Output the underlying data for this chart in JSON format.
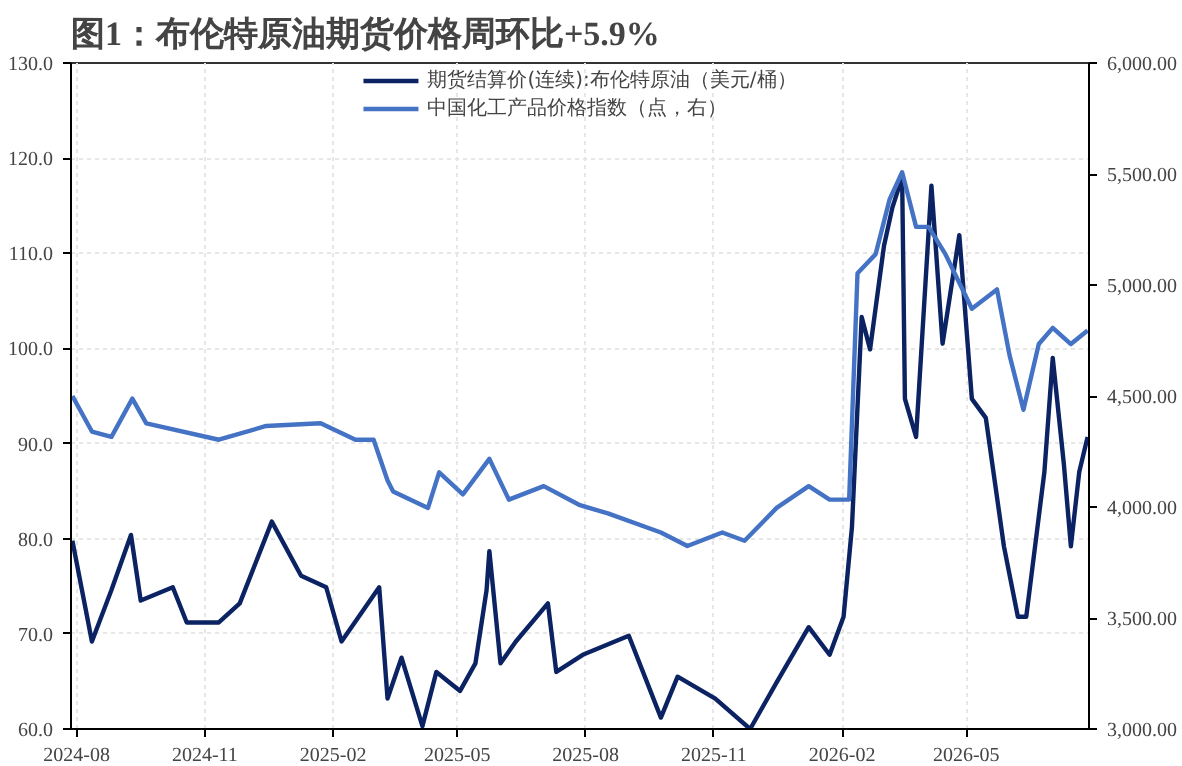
{
  "chart_data": {
    "type": "line",
    "title": "图1：布伦特原油期货价格周环比+5.9%",
    "xlim": [
      "2024-07-28",
      "2026-07-28"
    ],
    "xticks": [
      "2024-08",
      "2024-11",
      "2025-02",
      "2025-05",
      "2025-08",
      "2025-11",
      "2026-02",
      "2026-05"
    ],
    "ylim": [
      60,
      130
    ],
    "yticks": [
      {
        "value": 60,
        "label": "60.0"
      },
      {
        "value": 70,
        "label": "70.0"
      },
      {
        "value": 80,
        "label": "80.0"
      },
      {
        "value": 90,
        "label": "90.0"
      },
      {
        "value": 100,
        "label": "100.0"
      },
      {
        "value": 110,
        "label": "110.0"
      },
      {
        "value": 120,
        "label": "120.0"
      },
      {
        "value": 130,
        "label": "130.0"
      }
    ],
    "y2lim": [
      3000,
      6000
    ],
    "y2ticks": [
      {
        "value": 3000,
        "label": "3,000.00"
      },
      {
        "value": 3500,
        "label": "3,500.00"
      },
      {
        "value": 4000,
        "label": "4,000.00"
      },
      {
        "value": 4500,
        "label": "4,500.00"
      },
      {
        "value": 5000,
        "label": "5,000.00"
      },
      {
        "value": 5500,
        "label": "5,500.00"
      },
      {
        "value": 6000,
        "label": "6,000.00"
      }
    ],
    "grid": true,
    "legend": "top",
    "line_style": "solid",
    "series": [
      {
        "name": "期货结算价(连续):布伦特原油（美元/桶）",
        "color": "#0b2263",
        "x": [
          "2024-07-29",
          "2024-08-12",
          "2024-08-26",
          "2024-09-09",
          "2024-09-16",
          "2024-10-09",
          "2024-10-19",
          "2024-11-11",
          "2024-11-26",
          "2024-12-19",
          "2025-01-09",
          "2025-01-27",
          "2025-02-07",
          "2025-03-06",
          "2025-03-12",
          "2025-03-22",
          "2025-04-06",
          "2025-04-16",
          "2025-05-03",
          "2025-05-14",
          "2025-05-22",
          "2025-05-24",
          "2025-06-01",
          "2025-06-12",
          "2025-07-05",
          "2025-07-11",
          "2025-07-30",
          "2025-09-01",
          "2025-09-24",
          "2025-10-06",
          "2025-11-02",
          "2025-11-27",
          "2025-12-16",
          "2026-01-08",
          "2026-01-23",
          "2026-02-02",
          "2026-02-08",
          "2026-02-15",
          "2026-02-21",
          "2026-03-03",
          "2026-03-09",
          "2026-03-16",
          "2026-03-18",
          "2026-03-26",
          "2026-04-06",
          "2026-04-14",
          "2026-04-26",
          "2026-05-05",
          "2026-05-15",
          "2026-05-28",
          "2026-06-07",
          "2026-06-13",
          "2026-06-26",
          "2026-07-02",
          "2026-07-10",
          "2026-07-15",
          "2026-07-21",
          "2026-07-27"
        ],
        "values": [
          79.8,
          69.2,
          74.6,
          80.4,
          73.5,
          74.9,
          71.2,
          71.2,
          73.2,
          81.8,
          76.1,
          74.9,
          69.2,
          74.9,
          63.2,
          67.5,
          60.3,
          66.0,
          64.0,
          66.9,
          74.6,
          78.7,
          66.9,
          69.2,
          73.2,
          66.0,
          67.8,
          69.8,
          61.2,
          65.5,
          63.2,
          60.0,
          64.9,
          70.7,
          67.8,
          71.8,
          81.2,
          103.3,
          99.9,
          110.8,
          114.8,
          118.0,
          94.7,
          90.7,
          117.1,
          100.5,
          111.9,
          94.7,
          92.7,
          79.2,
          71.8,
          71.8,
          87.0,
          99.0,
          87.8,
          79.2,
          87.0,
          90.7
        ]
      },
      {
        "name": "中国化工产品价格指数（点，右）",
        "color": "#4472c4",
        "axis": "y2",
        "x": [
          "2024-07-29",
          "2024-08-12",
          "2024-08-26",
          "2024-09-10",
          "2024-09-20",
          "2024-11-11",
          "2024-12-15",
          "2025-01-23",
          "2025-02-17",
          "2025-03-02",
          "2025-03-12",
          "2025-03-16",
          "2025-04-10",
          "2025-04-18",
          "2025-05-05",
          "2025-05-24",
          "2025-06-07",
          "2025-07-02",
          "2025-07-28",
          "2025-08-17",
          "2025-09-24",
          "2025-10-13",
          "2025-11-07",
          "2025-11-23",
          "2025-12-16",
          "2026-01-08",
          "2026-01-23",
          "2026-02-06",
          "2026-02-12",
          "2026-02-25",
          "2026-03-07",
          "2026-03-16",
          "2026-03-26",
          "2026-04-04",
          "2026-04-16",
          "2026-05-05",
          "2026-05-23",
          "2026-06-01",
          "2026-06-11",
          "2026-06-22",
          "2026-07-02",
          "2026-07-15",
          "2026-07-27"
        ],
        "values": [
          4500,
          4340,
          4316,
          4488,
          4377,
          4303,
          4365,
          4377,
          4303,
          4303,
          4119,
          4070,
          3996,
          4156,
          4057,
          4217,
          4033,
          4094,
          4008,
          3971,
          3885,
          3824,
          3885,
          3848,
          3996,
          4094,
          4033,
          4033,
          5053,
          5139,
          5385,
          5508,
          5262,
          5262,
          5139,
          4893,
          4980,
          4684,
          4438,
          4734,
          4807,
          4734,
          4795
        ]
      }
    ]
  }
}
